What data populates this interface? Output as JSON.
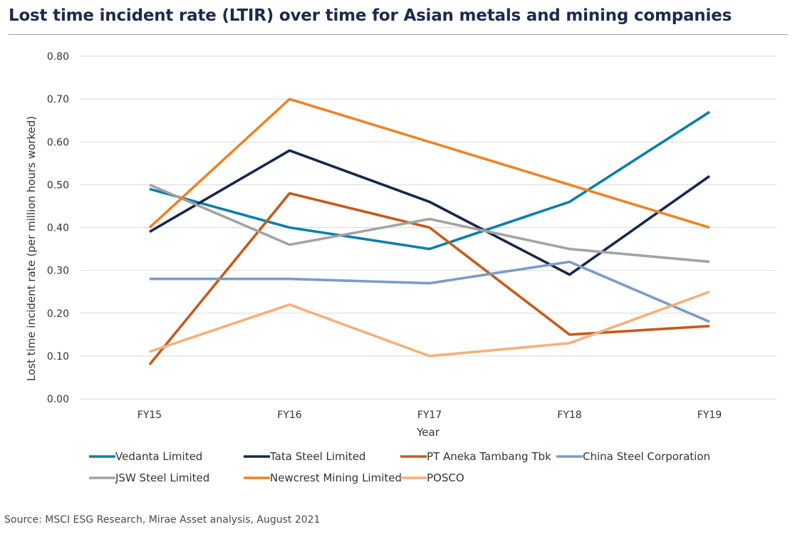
{
  "page": {
    "title": "Lost time incident rate (LTIR) over time for Asian metals and mining companies",
    "source": "Source: MSCI ESG Research, Mirae Asset analysis, August 2021"
  },
  "chart_data": {
    "type": "line",
    "title": "Lost time incident rate (LTIR) over time for Asian metals and mining companies",
    "xlabel": "Year",
    "ylabel": "Lost time incident rate (per million hours worked)",
    "categories": [
      "FY15",
      "FY16",
      "FY17",
      "FY18",
      "FY19"
    ],
    "ylim": [
      0,
      0.8
    ],
    "yticks": [
      "0.00",
      "0.10",
      "0.20",
      "0.30",
      "0.40",
      "0.50",
      "0.60",
      "0.70",
      "0.80"
    ],
    "grid": "horizontal",
    "legend_position": "bottom",
    "series": [
      {
        "name": "Vedanta Limited",
        "color": "#0b7fab",
        "values": [
          0.49,
          0.4,
          0.35,
          0.46,
          0.67
        ]
      },
      {
        "name": "Tata Steel Limited",
        "color": "#15284b",
        "values": [
          0.39,
          0.58,
          0.46,
          0.29,
          0.52
        ]
      },
      {
        "name": "PT Aneka Tambang Tbk",
        "color": "#c55a1a",
        "values": [
          0.08,
          0.48,
          0.4,
          0.15,
          0.17
        ]
      },
      {
        "name": "China Steel Corporation",
        "color": "#7b9cc5",
        "values": [
          0.28,
          0.28,
          0.27,
          0.32,
          0.18
        ]
      },
      {
        "name": "JSW Steel Limited",
        "color": "#a3a3a3",
        "values": [
          0.5,
          0.36,
          0.42,
          0.35,
          0.32
        ]
      },
      {
        "name": "Newcrest Mining Limited",
        "color": "#ee8326",
        "values": [
          0.4,
          0.7,
          0.6,
          0.5,
          0.4
        ]
      },
      {
        "name": "POSCO",
        "color": "#f5b07a",
        "values": [
          0.11,
          0.22,
          0.1,
          0.13,
          0.25
        ]
      }
    ]
  }
}
